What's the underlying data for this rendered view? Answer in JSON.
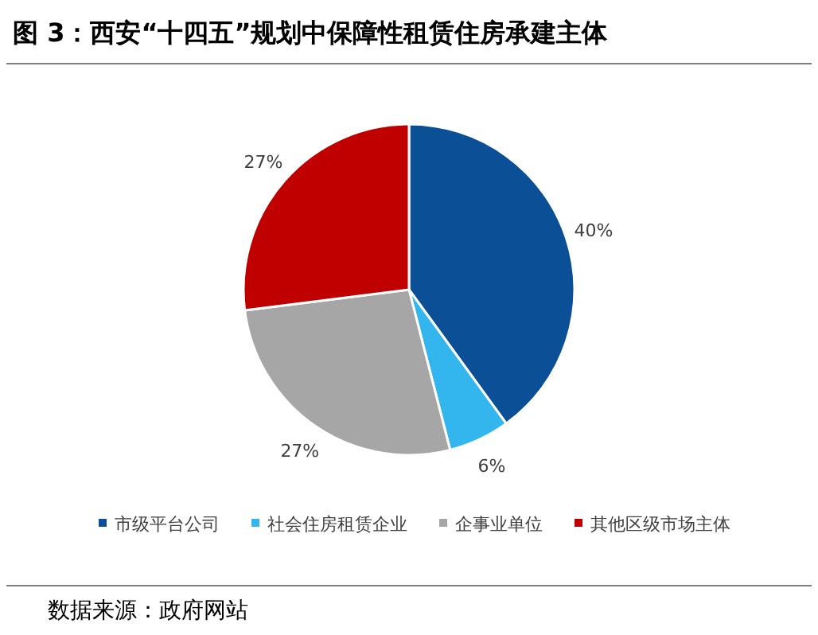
{
  "chart_data": {
    "type": "pie",
    "title": "图 3：西安“十四五”规划中保障性租赁住房承建主体",
    "categories": [
      "市级平台公司",
      "社会住房租赁企业",
      "企事业单位",
      "其他区级市场主体"
    ],
    "values": [
      40,
      6,
      27,
      27
    ],
    "colors": [
      "#0b4f96",
      "#33b5ee",
      "#a6a6a6",
      "#c00000"
    ],
    "value_labels": [
      "40%",
      "6%",
      "27%",
      "27%"
    ],
    "legend": "bottom",
    "annotations": [
      "数据来源：政府网站"
    ]
  }
}
